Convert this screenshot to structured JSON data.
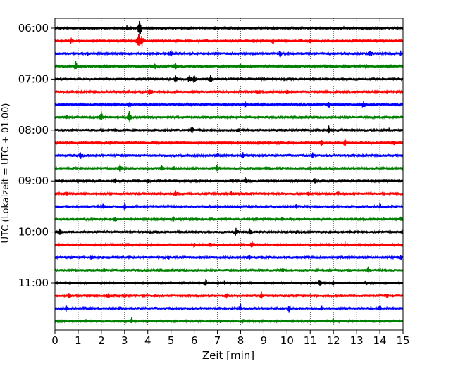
{
  "chart_data": {
    "type": "line",
    "title": "",
    "xlabel": "Zeit  [min]",
    "ylabel": "UTC (Lokalzeit = UTC + 01:00)",
    "xlim": [
      0,
      15
    ],
    "x_ticks": [
      "0",
      "1",
      "2",
      "3",
      "4",
      "5",
      "6",
      "7",
      "8",
      "9",
      "10",
      "11",
      "12",
      "13",
      "14",
      "15"
    ],
    "y_ticks": [
      "06:00",
      "07:00",
      "08:00",
      "09:00",
      "10:00",
      "11:00"
    ],
    "grid": "vertical dotted at each minute",
    "trace_interval_minutes": 15,
    "trace_colors": [
      "#000000",
      "#ff0000",
      "#0000ff",
      "#008000"
    ],
    "traces": [
      {
        "start": "06:00",
        "events": [
          [
            1.3,
            0.3
          ],
          [
            3.1,
            0.5
          ],
          [
            3.65,
            2.8
          ],
          [
            6.9,
            0.3
          ],
          [
            12.3,
            0.3
          ]
        ]
      },
      {
        "start": "06:15",
        "events": [
          [
            0.7,
            0.8
          ],
          [
            3.6,
            2.0
          ],
          [
            3.75,
            1.5
          ],
          [
            9.4,
            0.7
          ],
          [
            11,
            0.4
          ]
        ]
      },
      {
        "start": "06:30",
        "events": [
          [
            1.4,
            0.3
          ],
          [
            5.0,
            1.0
          ],
          [
            9.7,
            0.8
          ],
          [
            13.6,
            0.8
          ],
          [
            14.9,
            0.5
          ]
        ]
      },
      {
        "start": "06:45",
        "events": [
          [
            0.9,
            1.2
          ],
          [
            4.3,
            0.6
          ],
          [
            5.2,
            1.0
          ],
          [
            8.0,
            0.4
          ],
          [
            13.4,
            0.5
          ]
        ]
      },
      {
        "start": "07:00",
        "events": [
          [
            5.2,
            1.0
          ],
          [
            5.8,
            0.9
          ],
          [
            6.0,
            0.9
          ],
          [
            6.7,
            1.0
          ]
        ]
      },
      {
        "start": "07:15",
        "events": [
          [
            4.1,
            0.6
          ],
          [
            8.7,
            0.5
          ],
          [
            10.0,
            0.4
          ]
        ]
      },
      {
        "start": "07:30",
        "events": [
          [
            3.2,
            0.8
          ],
          [
            8.2,
            0.8
          ],
          [
            11.8,
            0.7
          ],
          [
            13.3,
            1.0
          ]
        ]
      },
      {
        "start": "07:45",
        "events": [
          [
            2.0,
            1.3
          ],
          [
            3.2,
            1.4
          ],
          [
            0.5,
            0.4
          ]
        ]
      },
      {
        "start": "08:00",
        "events": [
          [
            5.9,
            1.0
          ],
          [
            7.9,
            0.5
          ],
          [
            11.8,
            0.8
          ],
          [
            14.4,
            0.3
          ]
        ]
      },
      {
        "start": "08:15",
        "events": [
          [
            11.5,
            1.0
          ],
          [
            12.5,
            0.8
          ],
          [
            14.6,
            0.4
          ]
        ]
      },
      {
        "start": "08:30",
        "events": [
          [
            1.1,
            1.0
          ],
          [
            7.0,
            0.5
          ],
          [
            8.1,
            0.6
          ],
          [
            11.1,
            0.5
          ]
        ]
      },
      {
        "start": "08:45",
        "events": [
          [
            2.8,
            0.8
          ],
          [
            4.6,
            0.8
          ],
          [
            5.1,
            0.6
          ],
          [
            7.0,
            0.8
          ],
          [
            9.1,
            0.4
          ],
          [
            15.0,
            0.4
          ]
        ]
      },
      {
        "start": "09:00",
        "events": [
          [
            2.6,
            0.4
          ],
          [
            4.0,
            0.4
          ],
          [
            8.2,
            0.8
          ],
          [
            11.2,
            0.4
          ]
        ]
      },
      {
        "start": "09:15",
        "events": [
          [
            0.5,
            0.5
          ],
          [
            5.2,
            0.6
          ],
          [
            7.6,
            0.4
          ],
          [
            10.9,
            0.5
          ],
          [
            12.2,
            0.4
          ]
        ]
      },
      {
        "start": "09:30",
        "events": [
          [
            2.1,
            0.7
          ],
          [
            3.0,
            0.9
          ],
          [
            10.4,
            0.5
          ],
          [
            14.0,
            0.6
          ]
        ]
      },
      {
        "start": "09:45",
        "events": [
          [
            2.6,
            0.5
          ],
          [
            5.1,
            0.4
          ],
          [
            9.8,
            0.3
          ],
          [
            14.9,
            0.5
          ]
        ]
      },
      {
        "start": "10:00",
        "events": [
          [
            0.2,
            0.6
          ],
          [
            7.8,
            0.8
          ],
          [
            8.4,
            0.7
          ],
          [
            10.4,
            0.4
          ],
          [
            15.0,
            0.4
          ]
        ]
      },
      {
        "start": "10:15",
        "events": [
          [
            6.0,
            0.6
          ],
          [
            6.7,
            0.6
          ],
          [
            8.5,
            0.9
          ],
          [
            12.5,
            0.5
          ]
        ]
      },
      {
        "start": "10:30",
        "events": [
          [
            1.6,
            0.7
          ],
          [
            4.9,
            0.5
          ],
          [
            8.4,
            0.4
          ],
          [
            14.9,
            0.5
          ]
        ]
      },
      {
        "start": "10:45",
        "events": [
          [
            2.1,
            0.4
          ],
          [
            9.8,
            0.4
          ],
          [
            13.5,
            0.6
          ]
        ]
      },
      {
        "start": "11:00",
        "events": [
          [
            6.5,
            0.7
          ],
          [
            7.3,
            0.5
          ],
          [
            11.4,
            0.8
          ],
          [
            12.0,
            0.6
          ],
          [
            13.4,
            0.4
          ]
        ]
      },
      {
        "start": "11:15",
        "events": [
          [
            0.6,
            0.7
          ],
          [
            2.3,
            0.5
          ],
          [
            7.4,
            0.7
          ],
          [
            8.9,
            0.8
          ],
          [
            14.3,
            0.5
          ]
        ]
      },
      {
        "start": "11:30",
        "events": [
          [
            0.5,
            0.8
          ],
          [
            2.8,
            0.4
          ],
          [
            8.0,
            0.8
          ],
          [
            10.1,
            0.9
          ],
          [
            11.5,
            0.4
          ],
          [
            14.0,
            0.7
          ]
        ]
      },
      {
        "start": "11:45",
        "events": [
          [
            1.3,
            0.4
          ],
          [
            3.3,
            0.8
          ],
          [
            7.1,
            0.4
          ],
          [
            8.1,
            0.5
          ],
          [
            12.0,
            0.6
          ]
        ]
      }
    ]
  }
}
